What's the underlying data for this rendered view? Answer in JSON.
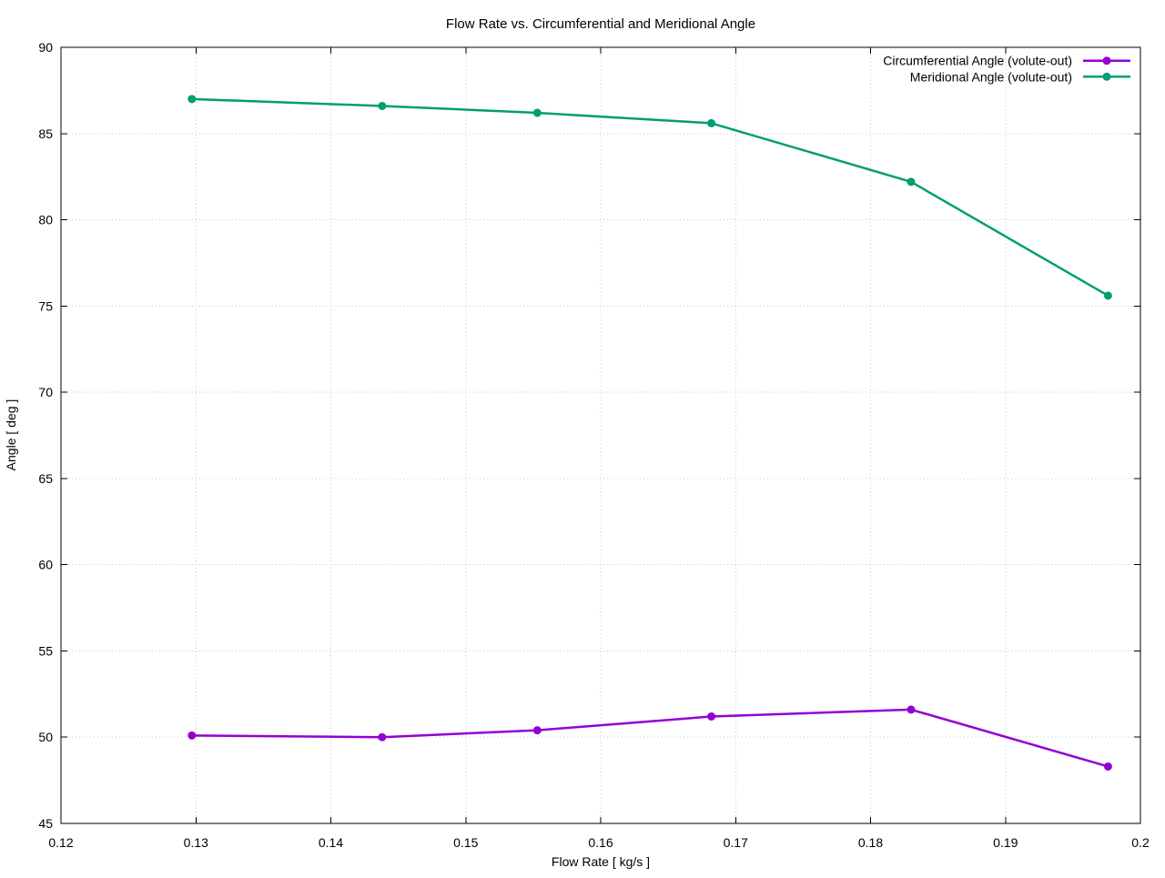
{
  "chart_data": {
    "type": "line",
    "title": "Flow Rate vs. Circumferential and Meridional Angle",
    "xlabel": "Flow Rate [ kg/s ]",
    "ylabel": "Angle [ deg ]",
    "xlim": [
      0.12,
      0.2
    ],
    "ylim": [
      45,
      90
    ],
    "xticks": {
      "values": [
        0.12,
        0.13,
        0.14,
        0.15,
        0.16,
        0.17,
        0.18,
        0.19,
        0.2
      ],
      "labels": [
        "0.12",
        "0.13",
        "0.14",
        "0.15",
        "0.16",
        "0.17",
        "0.18",
        "0.19",
        "0.2"
      ]
    },
    "yticks": {
      "values": [
        45,
        50,
        55,
        60,
        65,
        70,
        75,
        80,
        85,
        90
      ],
      "labels": [
        "45",
        "50",
        "55",
        "60",
        "65",
        "70",
        "75",
        "80",
        "85",
        "90"
      ]
    },
    "grid": true,
    "grid_style": "dotted",
    "legend_position": "top-right-inside",
    "x": [
      0.1297,
      0.1438,
      0.1553,
      0.1682,
      0.183,
      0.1976
    ],
    "series": [
      {
        "name": "Circumferential Angle (volute-out)",
        "color": "#9400d3",
        "values": [
          50.1,
          50.0,
          50.4,
          51.2,
          51.6,
          48.3
        ]
      },
      {
        "name": "Meridional Angle (volute-out)",
        "color": "#009e73",
        "values": [
          87.0,
          86.6,
          86.2,
          85.6,
          82.2,
          75.6
        ]
      }
    ],
    "colors": {
      "axis": "#000000",
      "grid": "#c8c8c8",
      "text": "#000000",
      "background": "#ffffff"
    }
  }
}
